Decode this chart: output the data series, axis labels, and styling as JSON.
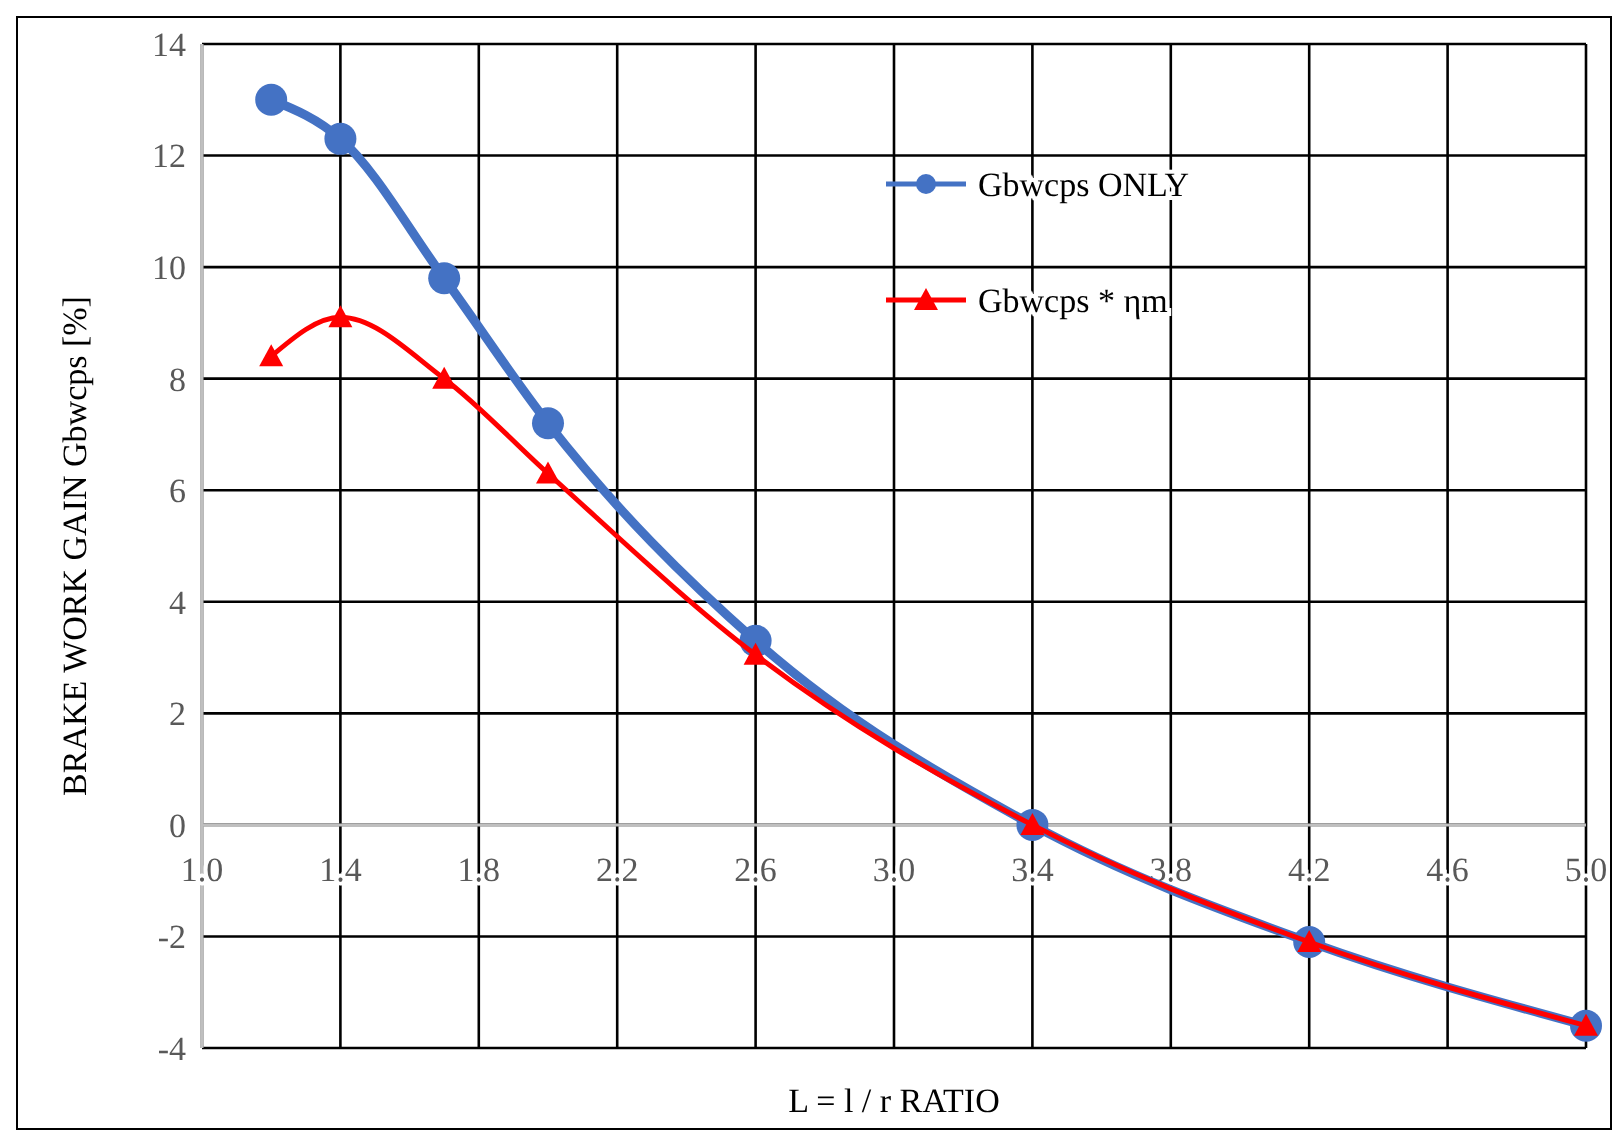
{
  "chart_data": {
    "type": "line",
    "xlabel": "L = l / r RATIO",
    "ylabel": "BRAKE WORK GAIN  Gbwcps [%]",
    "x": [
      1.2,
      1.4,
      1.7,
      2.0,
      2.6,
      3.4,
      4.2,
      5.0
    ],
    "series": [
      {
        "name": "Gbwcps ONLY",
        "color": "#4472c4",
        "marker": "circle",
        "values": [
          13.0,
          12.3,
          9.8,
          7.2,
          3.3,
          0,
          -2.1,
          -3.6
        ]
      },
      {
        "name": "Gbwcps * ηm",
        "color": "#ff0000",
        "marker": "triangle",
        "values": [
          8.4,
          9.1,
          8.0,
          6.3,
          3.05,
          0,
          -2.1,
          -3.6
        ]
      }
    ],
    "xlim": [
      1.0,
      5.0
    ],
    "xticks": [
      {
        "value": 1.0,
        "label": "1.0"
      },
      1.4,
      1.8,
      2.2,
      2.6,
      {
        "value": 3.0,
        "label": "3.0"
      },
      3.4,
      3.8,
      4.2,
      4.6,
      {
        "value": 5.0,
        "label": "5.0"
      }
    ],
    "ylim": [
      -4,
      14
    ],
    "yticks": [
      -4,
      -2,
      0,
      2,
      4,
      6,
      8,
      10,
      12,
      14
    ],
    "grid": true,
    "legend": "top right"
  }
}
